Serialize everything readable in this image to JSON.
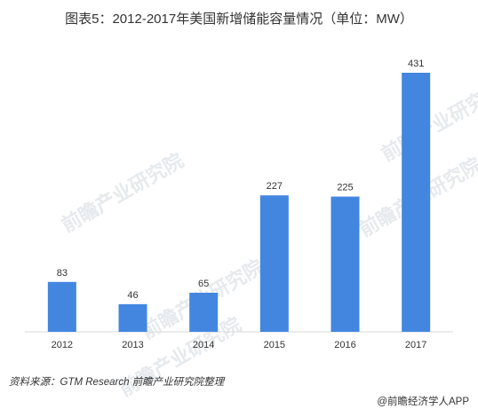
{
  "chart_data": {
    "type": "bar",
    "title": "图表5：2012-2017年美国新增储能容量情况（单位：MW）",
    "categories": [
      "2012",
      "2013",
      "2014",
      "2015",
      "2016",
      "2017"
    ],
    "values": [
      83,
      46,
      65,
      227,
      225,
      431
    ],
    "xlabel": "",
    "ylabel": "",
    "ylim": [
      0,
      460
    ],
    "grid": false,
    "legend": "none",
    "bar_color": "#4286e0"
  },
  "watermark": {
    "text": "前瞻产业研究院"
  },
  "footer": {
    "source": "资料来源：GTM Research 前瞻产业研究院整理",
    "brand": "@前瞻经济学人APP"
  }
}
